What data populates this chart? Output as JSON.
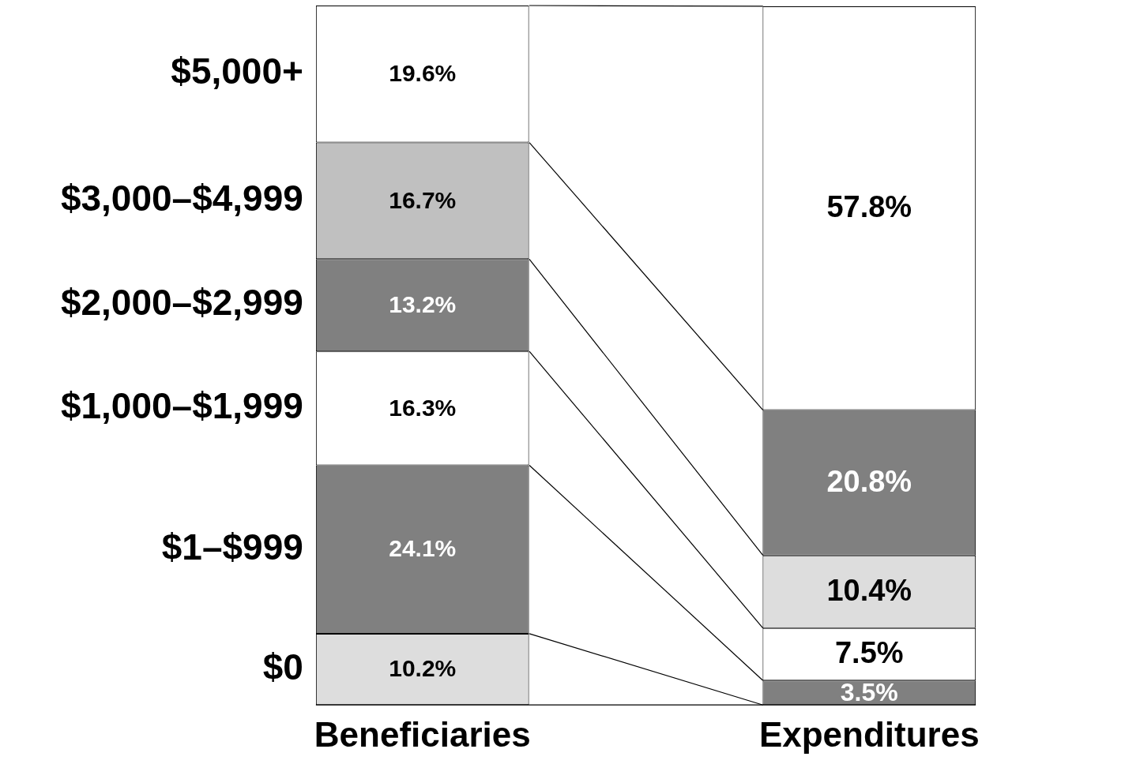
{
  "chart_data": {
    "type": "bar",
    "stacked": true,
    "categories": [
      "Beneficiaries",
      "Expenditures"
    ],
    "series": [
      {
        "name": "$0",
        "color": "#dddddd",
        "values": [
          10.2,
          0
        ],
        "value_labels": [
          "10.2%",
          null
        ]
      },
      {
        "name": "$1–$999",
        "color": "#808080",
        "values": [
          24.1,
          3.5
        ],
        "value_labels": [
          "24.1%",
          "3.5%"
        ]
      },
      {
        "name": "$1,000–$1,999",
        "color": "#ffffff",
        "values": [
          16.3,
          7.5
        ],
        "value_labels": [
          "16.3%",
          "7.5%"
        ]
      },
      {
        "name": "$2,000–$2,999",
        "colors": [
          "#808080",
          "#dddddd"
        ],
        "values": [
          13.2,
          10.4
        ],
        "value_labels": [
          "13.2%",
          "10.4%"
        ]
      },
      {
        "name": "$3,000–$4,999",
        "colors": [
          "#c0c0c0",
          "#808080"
        ],
        "values": [
          16.7,
          20.8
        ],
        "value_labels": [
          "16.7%",
          "20.8%"
        ]
      },
      {
        "name": "$5,000+",
        "color": "#ffffff",
        "values": [
          19.6,
          57.8
        ],
        "value_labels": [
          "19.6%",
          "57.8%"
        ]
      }
    ]
  }
}
